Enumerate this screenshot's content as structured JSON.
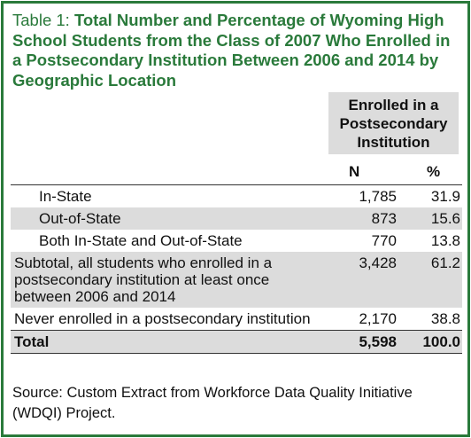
{
  "title": {
    "label": "Table 1:",
    "text": "Total Number and Percentage of Wyoming High School Students from the Class of 2007 Who Enrolled in a Postsecondary Institution Between 2006 and 2014 by Geographic Location"
  },
  "table": {
    "group_header": "Enrolled in a Postsecondary Institution",
    "columns": [
      "N",
      "%"
    ],
    "rows": [
      [
        "In-State",
        "1,785",
        "31.9"
      ],
      [
        "Out-of-State",
        "873",
        "15.6"
      ],
      [
        "Both In-State and Out-of-State",
        "770",
        "13.8"
      ],
      [
        "Subtotal, all students who enrolled in a postsecondary institution at least once between 2006 and 2014",
        "3,428",
        "61.2"
      ],
      [
        "Never enrolled in a postsecondary institution",
        "2,170",
        "38.8"
      ]
    ],
    "total": [
      "Total",
      "5,598",
      "100.0"
    ]
  },
  "source": "Source: Custom Extract from Workforce Data Quality Initiative (WDQI) Project."
}
